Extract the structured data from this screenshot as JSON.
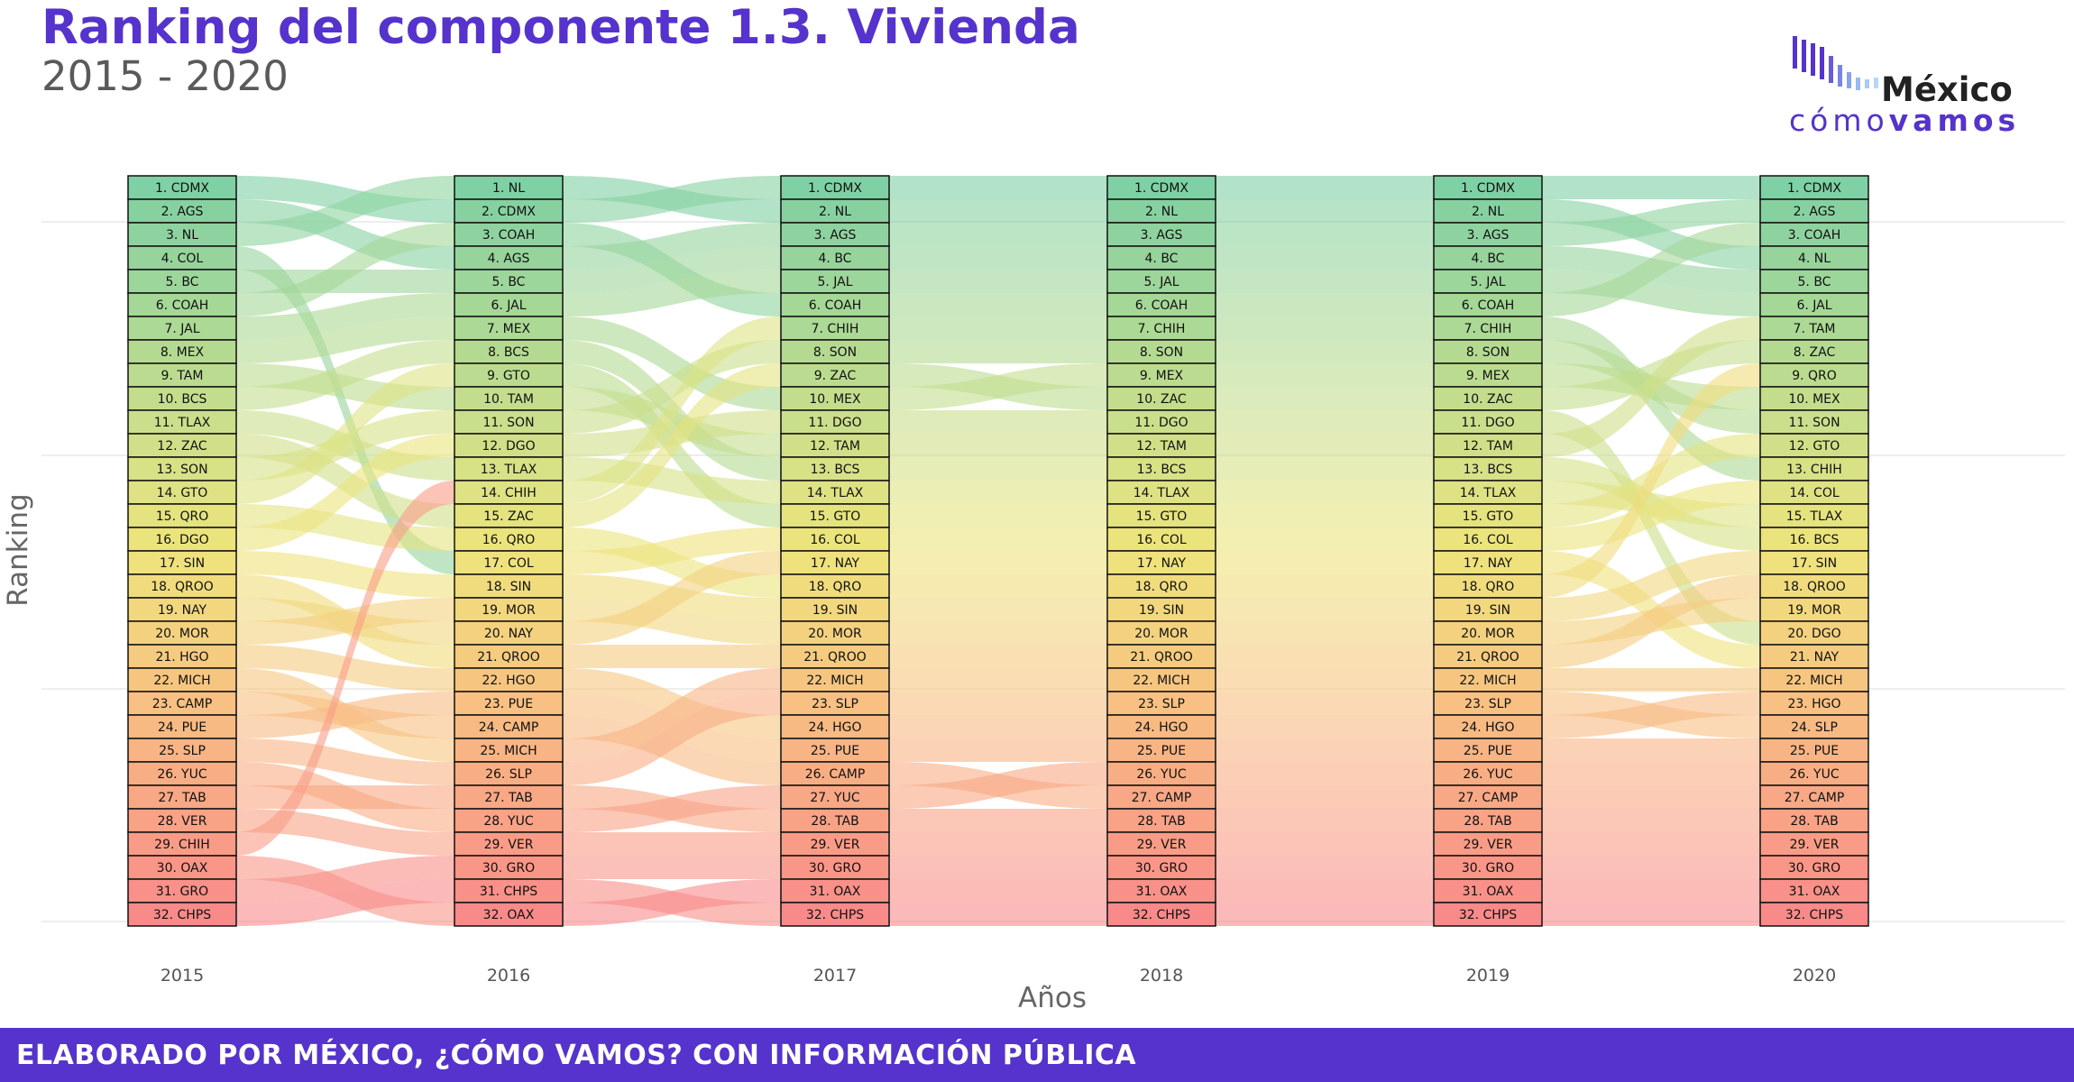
{
  "header": {
    "title": "Ranking del componente 1.3. Vivienda",
    "subtitle": "2015 - 2020"
  },
  "logo": {
    "name": "México",
    "tag_light": "cómo",
    "tag_bold": "vamos"
  },
  "footer": {
    "text": "ELABORADO POR MÉXICO, ¿CÓMO VAMOS? CON INFORMACIÓN PÚBLICA"
  },
  "colors": {
    "brand": "#5533cc",
    "top_rank": "#7fd0a4",
    "mid_rank": "#eee57c",
    "low_rank": "#f98a8a"
  },
  "chart_data": {
    "type": "bump",
    "title": "Ranking del componente 1.3. Vivienda",
    "subtitle": "2015 - 2020",
    "xlabel": "Años",
    "ylabel": "Ranking",
    "x": [
      "2015",
      "2016",
      "2017",
      "2018",
      "2019",
      "2020"
    ],
    "ylim": [
      1,
      32
    ],
    "rankings": [
      [
        "CDMX",
        "AGS",
        "NL",
        "COL",
        "BC",
        "COAH",
        "JAL",
        "MEX",
        "TAM",
        "BCS",
        "TLAX",
        "ZAC",
        "SON",
        "GTO",
        "QRO",
        "DGO",
        "SIN",
        "QROO",
        "NAY",
        "MOR",
        "HGO",
        "MICH",
        "CAMP",
        "PUE",
        "SLP",
        "YUC",
        "TAB",
        "VER",
        "CHIH",
        "OAX",
        "GRO",
        "CHPS"
      ],
      [
        "NL",
        "CDMX",
        "COAH",
        "AGS",
        "BC",
        "JAL",
        "MEX",
        "BCS",
        "GTO",
        "TAM",
        "SON",
        "DGO",
        "TLAX",
        "CHIH",
        "ZAC",
        "QRO",
        "COL",
        "SIN",
        "MOR",
        "NAY",
        "QROO",
        "HGO",
        "PUE",
        "CAMP",
        "MICH",
        "SLP",
        "TAB",
        "YUC",
        "VER",
        "GRO",
        "CHPS",
        "OAX"
      ],
      [
        "CDMX",
        "NL",
        "AGS",
        "BC",
        "JAL",
        "COAH",
        "CHIH",
        "SON",
        "ZAC",
        "MEX",
        "DGO",
        "TAM",
        "BCS",
        "TLAX",
        "GTO",
        "COL",
        "NAY",
        "QRO",
        "SIN",
        "MOR",
        "QROO",
        "MICH",
        "SLP",
        "HGO",
        "PUE",
        "CAMP",
        "YUC",
        "TAB",
        "VER",
        "GRO",
        "OAX",
        "CHPS"
      ],
      [
        "CDMX",
        "NL",
        "AGS",
        "BC",
        "JAL",
        "COAH",
        "CHIH",
        "SON",
        "MEX",
        "ZAC",
        "DGO",
        "TAM",
        "BCS",
        "TLAX",
        "GTO",
        "COL",
        "NAY",
        "QRO",
        "SIN",
        "MOR",
        "QROO",
        "MICH",
        "SLP",
        "HGO",
        "PUE",
        "YUC",
        "CAMP",
        "TAB",
        "VER",
        "GRO",
        "OAX",
        "CHPS"
      ],
      [
        "CDMX",
        "NL",
        "AGS",
        "BC",
        "JAL",
        "COAH",
        "CHIH",
        "SON",
        "MEX",
        "ZAC",
        "DGO",
        "TAM",
        "BCS",
        "TLAX",
        "GTO",
        "COL",
        "NAY",
        "QRO",
        "SIN",
        "MOR",
        "QROO",
        "MICH",
        "SLP",
        "HGO",
        "PUE",
        "YUC",
        "CAMP",
        "TAB",
        "VER",
        "GRO",
        "OAX",
        "CHPS"
      ],
      [
        "CDMX",
        "AGS",
        "COAH",
        "NL",
        "BC",
        "JAL",
        "TAM",
        "ZAC",
        "QRO",
        "MEX",
        "SON",
        "GTO",
        "CHIH",
        "COL",
        "TLAX",
        "BCS",
        "SIN",
        "QROO",
        "MOR",
        "DGO",
        "NAY",
        "MICH",
        "HGO",
        "SLP",
        "PUE",
        "YUC",
        "CAMP",
        "TAB",
        "VER",
        "GRO",
        "OAX",
        "CHPS"
      ]
    ]
  }
}
